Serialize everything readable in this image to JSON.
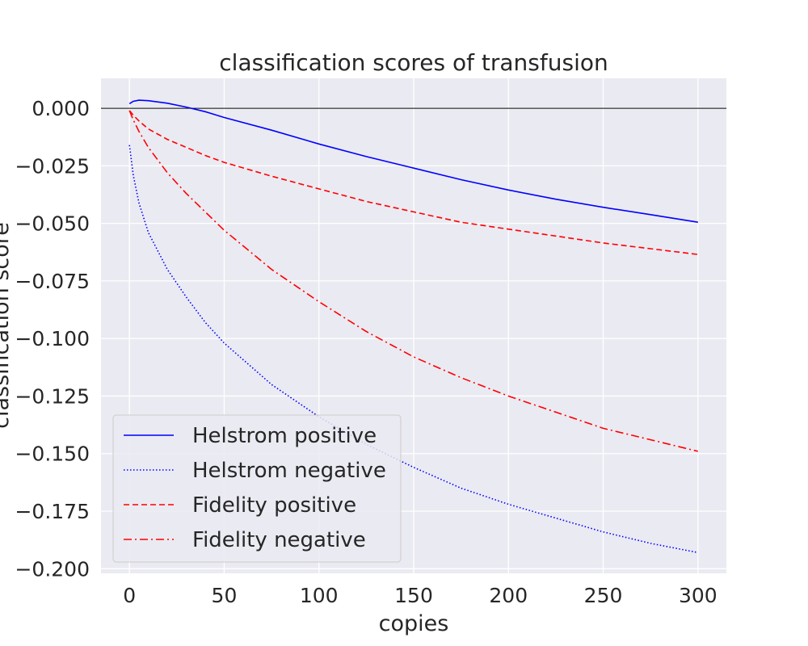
{
  "chart_data": {
    "type": "line",
    "title": "classification scores of transfusion",
    "xlabel": "copies",
    "ylabel": "classification score",
    "xlim": [
      -15,
      315
    ],
    "ylim": [
      -0.202,
      0.013
    ],
    "x_ticks": [
      0,
      50,
      100,
      150,
      200,
      250,
      300
    ],
    "y_ticks": [
      0.0,
      -0.025,
      -0.05,
      -0.075,
      -0.1,
      -0.125,
      -0.15,
      -0.175,
      -0.2
    ],
    "x_tick_labels": [
      "0",
      "50",
      "100",
      "150",
      "200",
      "250",
      "300"
    ],
    "y_tick_labels": [
      "0.000",
      "−0.025",
      "−0.050",
      "−0.075",
      "−0.100",
      "−0.125",
      "−0.150",
      "−0.175",
      "−0.200"
    ],
    "grid": true,
    "reference_line_y": 0,
    "legend_position": "lower-left",
    "series": [
      {
        "name": "Helstrom positive",
        "color": "#0000ff",
        "style": "solid",
        "x": [
          0,
          2,
          5,
          10,
          20,
          30,
          40,
          50,
          75,
          100,
          125,
          150,
          175,
          200,
          225,
          250,
          275,
          300
        ],
        "y": [
          0.002,
          0.003,
          0.0035,
          0.0033,
          0.0022,
          0.0005,
          -0.0015,
          -0.004,
          -0.0095,
          -0.0155,
          -0.021,
          -0.026,
          -0.031,
          -0.0355,
          -0.0395,
          -0.043,
          -0.0462,
          -0.0495
        ]
      },
      {
        "name": "Helstrom negative",
        "color": "#0000ff",
        "style": "dotted",
        "x": [
          0,
          2,
          5,
          10,
          20,
          30,
          40,
          50,
          75,
          100,
          125,
          150,
          175,
          200,
          225,
          250,
          275,
          300
        ],
        "y": [
          -0.016,
          -0.029,
          -0.041,
          -0.054,
          -0.07,
          -0.082,
          -0.093,
          -0.102,
          -0.12,
          -0.134,
          -0.146,
          -0.156,
          -0.165,
          -0.172,
          -0.178,
          -0.184,
          -0.189,
          -0.193
        ]
      },
      {
        "name": "Fidelity positive",
        "color": "#ff0000",
        "style": "dashed",
        "x": [
          0,
          2,
          5,
          10,
          20,
          30,
          40,
          50,
          75,
          100,
          125,
          150,
          175,
          200,
          225,
          250,
          275,
          300
        ],
        "y": [
          -0.001,
          -0.003,
          -0.0055,
          -0.009,
          -0.0135,
          -0.017,
          -0.0205,
          -0.0235,
          -0.0295,
          -0.035,
          -0.0405,
          -0.045,
          -0.0495,
          -0.0525,
          -0.0555,
          -0.0585,
          -0.061,
          -0.0635
        ]
      },
      {
        "name": "Fidelity negative",
        "color": "#ff0000",
        "style": "dashdot",
        "x": [
          0,
          2,
          5,
          10,
          20,
          30,
          40,
          50,
          75,
          100,
          125,
          150,
          175,
          200,
          225,
          250,
          275,
          300
        ],
        "y": [
          -0.001,
          -0.005,
          -0.01,
          -0.017,
          -0.028,
          -0.037,
          -0.045,
          -0.053,
          -0.07,
          -0.084,
          -0.097,
          -0.108,
          -0.117,
          -0.125,
          -0.132,
          -0.139,
          -0.144,
          -0.149
        ]
      }
    ]
  }
}
